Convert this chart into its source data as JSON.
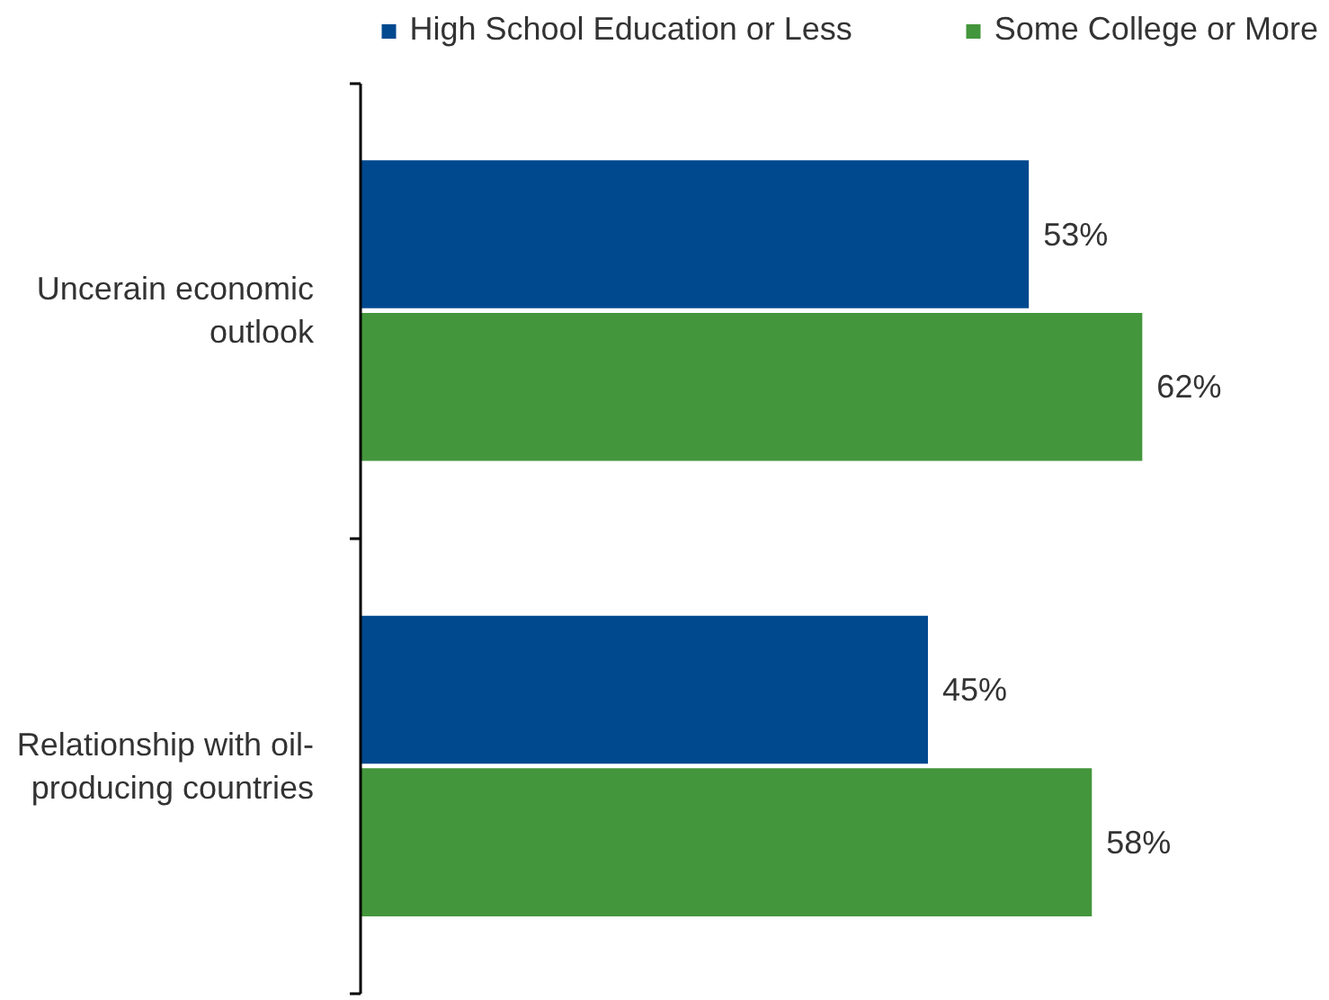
{
  "chart_data": {
    "type": "bar",
    "orientation": "horizontal",
    "categories": [
      "Uncerain economic outlook",
      "Relationship with oil-producing countries"
    ],
    "series": [
      {
        "name": "High School Education or Less",
        "color": "#00498f",
        "values": [
          53,
          45
        ],
        "value_labels": [
          "53%",
          "45%"
        ]
      },
      {
        "name": "Some College or More",
        "color": "#43963b",
        "values": [
          62,
          58
        ],
        "value_labels": [
          "62%",
          "58%"
        ]
      }
    ],
    "legend": "top",
    "tick_labels": "y"
  }
}
